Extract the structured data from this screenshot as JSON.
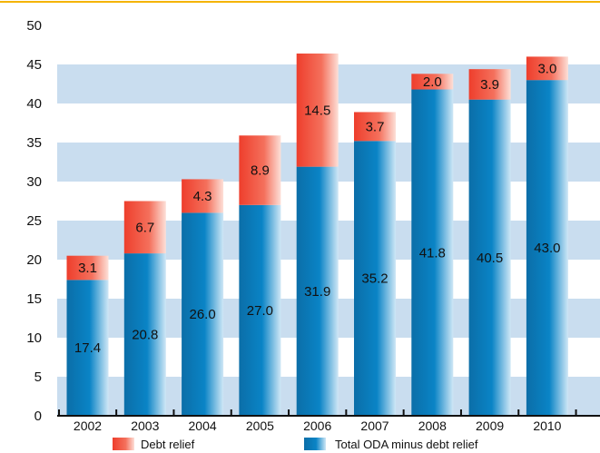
{
  "chart_data": {
    "type": "bar",
    "stacked": true,
    "categories": [
      "2002",
      "2003",
      "2004",
      "2005",
      "2006",
      "2007",
      "2008",
      "2009",
      "2010"
    ],
    "series": [
      {
        "name": "Total ODA minus debt relief",
        "values": [
          17.4,
          20.8,
          26.0,
          27.0,
          31.9,
          35.2,
          41.8,
          40.5,
          43.0
        ],
        "labels": [
          "17.4",
          "20.8",
          "26.0",
          "27.0",
          "31.9",
          "35.2",
          "41.8",
          "40.5",
          "43.0"
        ],
        "color": "#0a7fc0"
      },
      {
        "name": "Debt relief",
        "values": [
          3.1,
          6.7,
          4.3,
          8.9,
          14.5,
          3.7,
          2.0,
          3.9,
          3.0
        ],
        "labels": [
          "3.1",
          "6.7",
          "4.3",
          "8.9",
          "14.5",
          "3.7",
          "2.0",
          "3.9",
          "3.0"
        ],
        "color": "#f25a42"
      }
    ],
    "yticks": [
      "0",
      "5",
      "10",
      "15",
      "20",
      "25",
      "30",
      "35",
      "40",
      "45",
      "50"
    ],
    "ylim": [
      0,
      50
    ],
    "grid": "alternating horizontal bands",
    "legend": "bottom",
    "colors": {
      "accent_line": "#f5b400",
      "band": "#c9ddef",
      "axis": "#111111"
    }
  }
}
